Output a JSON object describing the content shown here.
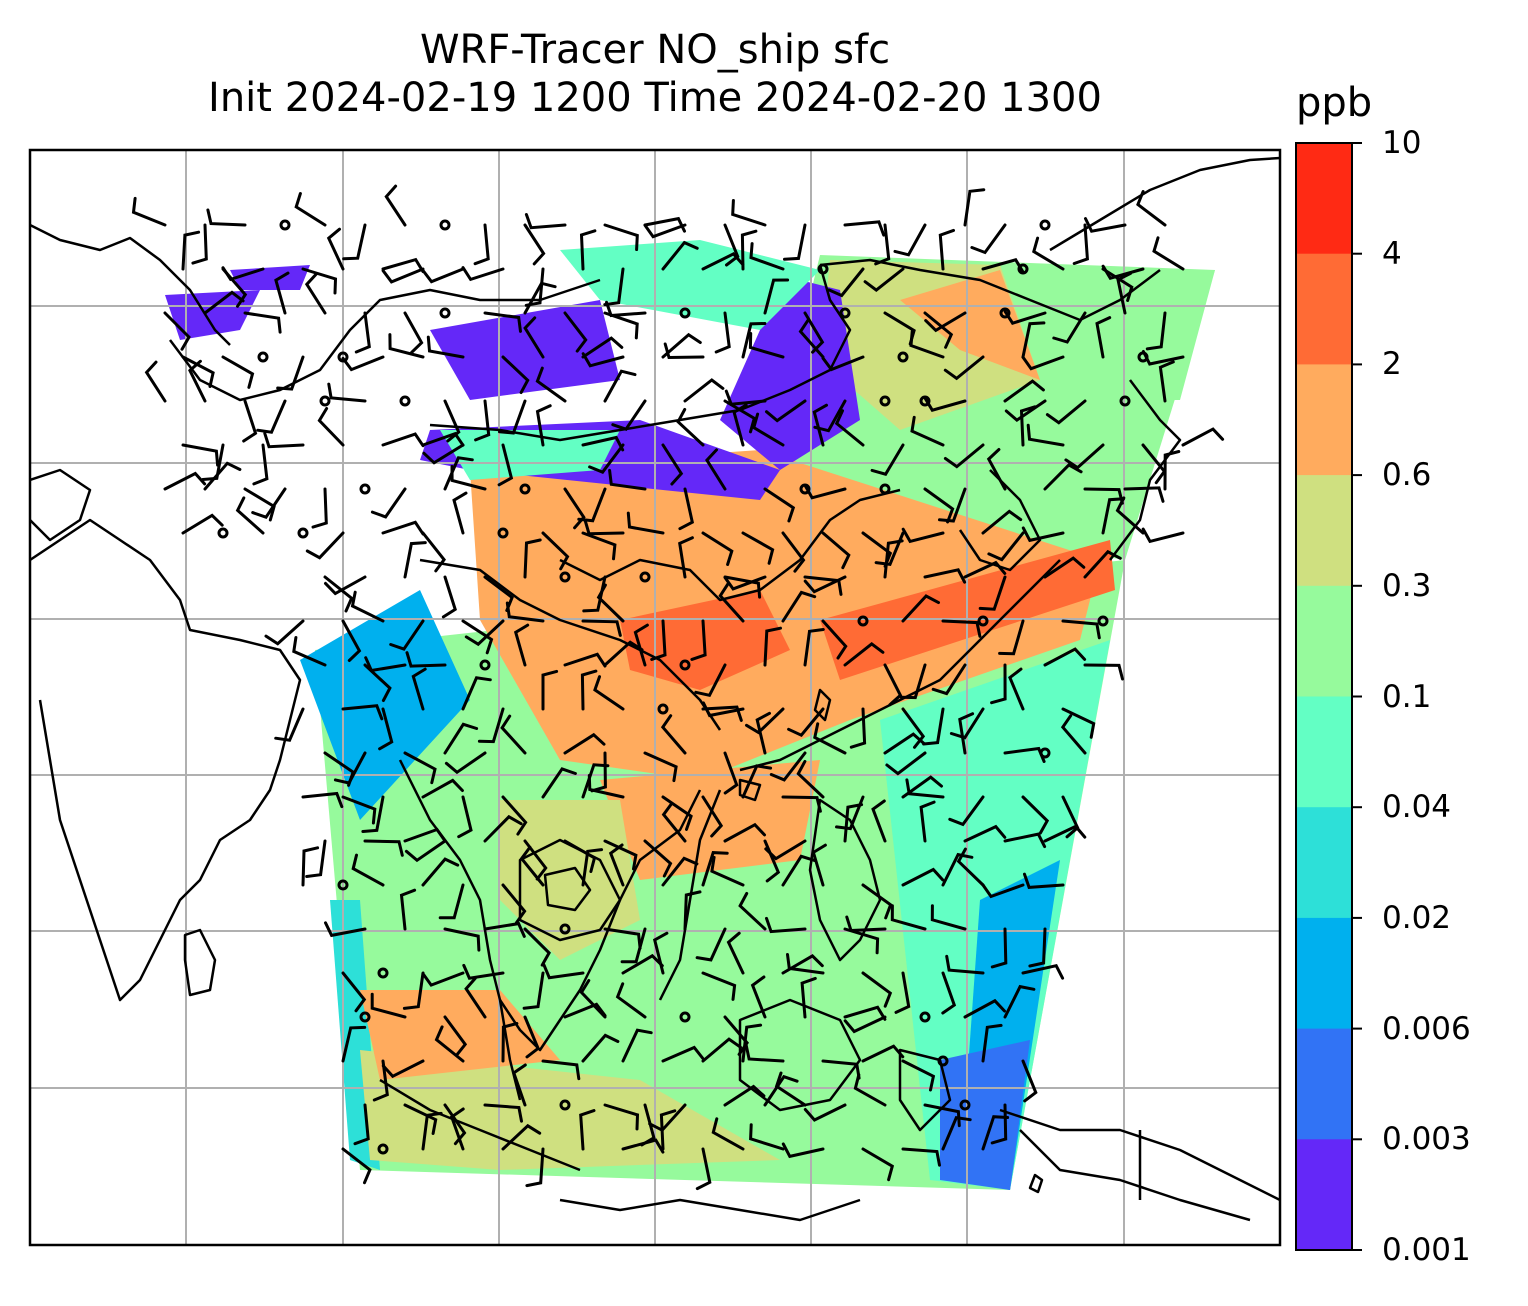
{
  "title": {
    "line1": "WRF-Tracer NO_ship sfc",
    "line2": "Init 2024-02-19 1200 Time 2024-02-20 1300"
  },
  "colorbar": {
    "unit": "ppb",
    "ticks": [
      "10",
      "4",
      "2",
      "0.6",
      "0.3",
      "0.1",
      "0.04",
      "0.02",
      "0.006",
      "0.003",
      "0.001"
    ],
    "colors": [
      "#ff2a14",
      "#ff6b35",
      "#ffab5e",
      "#cfe080",
      "#96fa9c",
      "#63ffc4",
      "#2de0d8",
      "#00b0ee",
      "#3173f5",
      "#6428f8"
    ]
  },
  "map": {
    "gridlines": "on",
    "grid_color": "#b0b0b0",
    "coastline_color": "#000000",
    "domain_shape": "trapezoid",
    "wind_barbs": "on"
  }
}
